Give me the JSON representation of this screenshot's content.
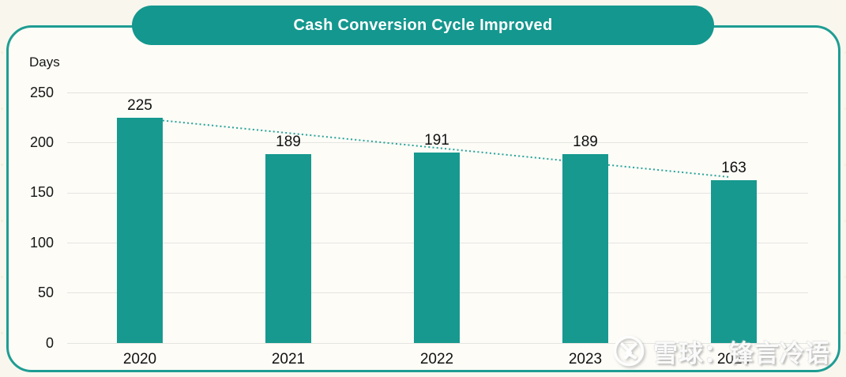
{
  "header": {
    "title": "Cash Conversion Cycle Improved"
  },
  "chart_data": {
    "type": "bar",
    "title": "Cash Conversion Cycle Improved",
    "unit_label": "Days",
    "categories": [
      "2020",
      "2021",
      "2022",
      "2023",
      "2024"
    ],
    "values": [
      225,
      189,
      191,
      189,
      163
    ],
    "data_labels": [
      "225",
      "189",
      "191",
      "189",
      "163"
    ],
    "xlabel": "",
    "ylabel": "Days",
    "ylim": [
      0,
      250
    ],
    "yticks": [
      0,
      50,
      100,
      150,
      200,
      250
    ],
    "grid": true,
    "legend_position": "none",
    "bar_color": "#17998f",
    "trendline": {
      "style": "dotted",
      "color": "#27a39a",
      "from": {
        "category": "2020",
        "value": 225
      },
      "to": {
        "category": "2024",
        "value": 163
      }
    }
  },
  "watermark": {
    "logo": "xueqiu-logo",
    "text": "雪球：锋言冷语"
  },
  "colors": {
    "accent_teal": "#14978e",
    "card_border": "#1e9d93",
    "gridline": "#e4e4e1",
    "text": "#161616",
    "page_bg": "#f9f6ee",
    "card_bg": "#fdfcf7"
  }
}
